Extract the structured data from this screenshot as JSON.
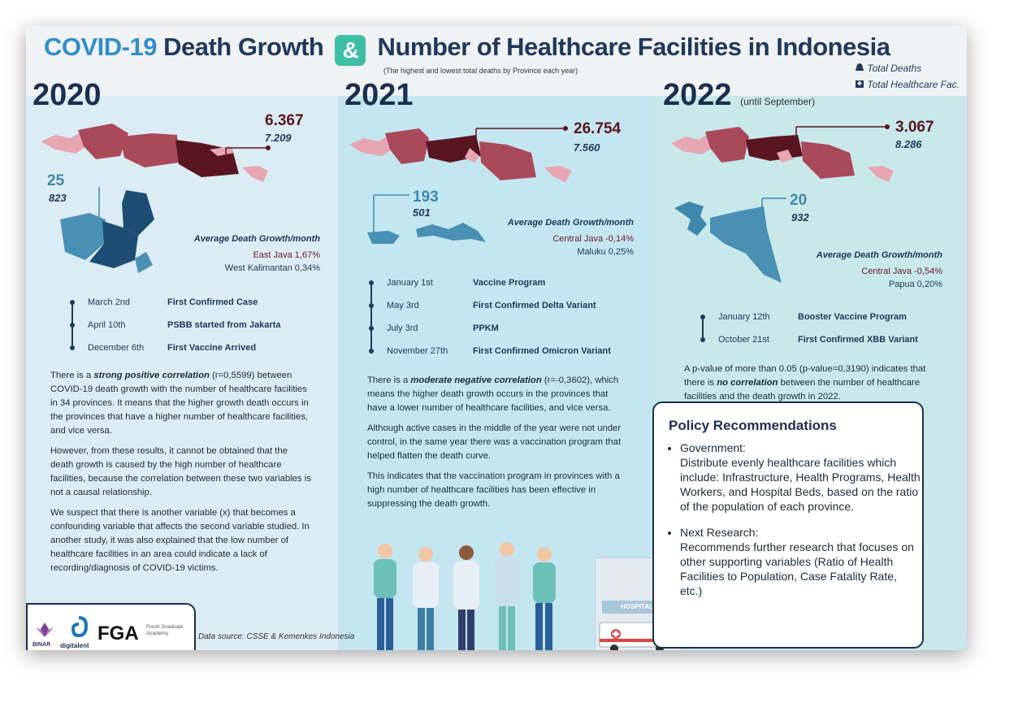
{
  "header": {
    "title_part1": "COVID-19",
    "title_part2": " Death Growth ",
    "ampersand": "&",
    "title_part3": " Number of Healthcare Facilities in Indonesia",
    "subtitle": "(The highest and lowest total deaths by Province each year)",
    "legend_deaths": "Total Deaths",
    "legend_facilities": "Total Healthcare Fac."
  },
  "years": [
    {
      "year": "2020",
      "year_note": "",
      "high_deaths": "6.367",
      "high_facilities": "7.209",
      "low_deaths": "25",
      "low_facilities": "823",
      "growth_heading": "Average Death Growth/month",
      "growth_a": "East Java 1,67%",
      "growth_b": "West Kalimantan 0,34%",
      "timeline": [
        {
          "date": "March 2nd",
          "event": "First Confirmed Case"
        },
        {
          "date": "April 10th",
          "event": "PSBB started from Jakarta"
        },
        {
          "date": "December 6th",
          "event": "First Vaccine Arrived"
        }
      ]
    },
    {
      "year": "2021",
      "year_note": "",
      "high_deaths": "26.754",
      "high_facilities": "7.560",
      "low_deaths": "193",
      "low_facilities": "501",
      "growth_heading": "Average Death Growth/month",
      "growth_a": "Central Java -0,14%",
      "growth_b": "Maluku 0,25%",
      "timeline": [
        {
          "date": "January 1st",
          "event": "Vaccine Program"
        },
        {
          "date": "May 3rd",
          "event": "First Confirmed Delta Variant"
        },
        {
          "date": "July 3rd",
          "event": "PPKM"
        },
        {
          "date": "November 27th",
          "event": "First Confirmed Omicron Variant"
        }
      ]
    },
    {
      "year": "2022",
      "year_note": "(until September)",
      "high_deaths": "3.067",
      "high_facilities": "8.286",
      "low_deaths": "20",
      "low_facilities": "932",
      "growth_heading": "Average Death Growth/month",
      "growth_a": "Central Java -0,54%",
      "growth_b": "Papua 0,20%",
      "timeline": [
        {
          "date": "January 12th",
          "event": "Booster Vaccine Program"
        },
        {
          "date": "October 21st",
          "event": "First Confirmed XBB Variant"
        }
      ]
    }
  ],
  "analysis_2020": {
    "p1_a": "There is a ",
    "p1_em": "strong positive correlation",
    "p1_b": " (r=0,5599) between COVID-19 death growth with the number of healthcare facilities in 34 provinces. It means that the higher growth death occurs in the provinces that have a higher number of healthcare facilities, and vice versa.",
    "p2": "However, from these results, it cannot be obtained that the death growth is caused by the high number of healthcare facilities, because the correlation between these two variables is not a causal relationship.",
    "p3": "We suspect that there is another variable (x) that becomes a confounding variable that affects the second variable studied. In another study, it was also explained that the low number of healthcare facilities in an area could indicate a lack of recording/diagnosis of COVID-19 victims."
  },
  "analysis_2021": {
    "p1_a": "There is a ",
    "p1_em": "moderate negative correlation",
    "p1_b": " (r=-0,3602), which means the higher death growth occurs in the provinces that have a lower number of healthcare facilities, and vice versa.",
    "p2": "Although active cases in the middle of the year were not under control, in the same year there was a vaccination program that helped flatten the death curve.",
    "p3": "This indicates that the vaccination program in provinces with a high number of healthcare facilities has been effective in suppressing the death growth."
  },
  "analysis_2022": {
    "p1_a": "A p-value of more than 0.05 (p-value=0,3190) indicates that there is ",
    "p1_em": "no correlation",
    "p1_b": " between the number of healthcare facilities and the death growth in 2022."
  },
  "policy": {
    "title": "Policy Recommendations",
    "item1_head": "Government:",
    "item1_body": "Distribute evenly healthcare facilities which include: Infrastructure, Health Programs, Health Workers, and Hospital Beds, based on the ratio of the population of each province.",
    "item2_head": "Next Research:",
    "item2_body": "Recommends further research that focuses on other supporting variables (Ratio of Health Facilities to Population, Case Fatality Rate, etc.)"
  },
  "footer": {
    "logo1": "BINAR",
    "logo2": "digitalent",
    "logo3": "FGA",
    "logo3_sub": "Fresh Graduate Academy",
    "source": "Data source: CSSE & Kemenkes Indonesia",
    "hospital_sign": "HOSPITAL"
  },
  "colors": {
    "navy": "#1b2f4f",
    "blue_title": "#2f8fc8",
    "teal_amp": "#3ebfa5",
    "dark_red": "#5a1620",
    "map_red": "#a94a5a",
    "map_pink": "#e6a7b3",
    "map_teal": "#3f88ad"
  }
}
